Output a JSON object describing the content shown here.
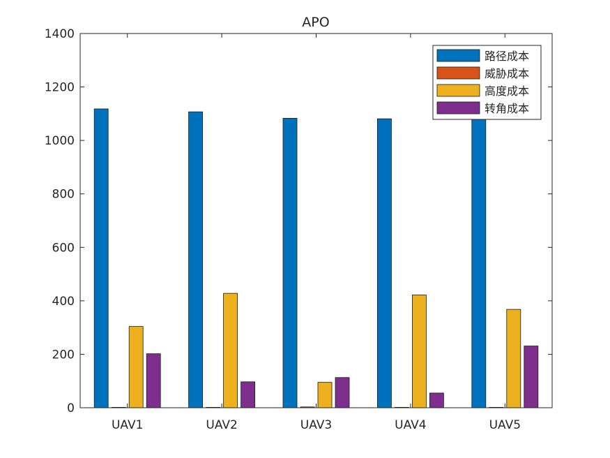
{
  "chart_data": {
    "type": "bar",
    "title": "APO",
    "xlabel": "",
    "ylabel": "",
    "categories": [
      "UAV1",
      "UAV2",
      "UAV3",
      "UAV4",
      "UAV5"
    ],
    "ylim": [
      0,
      1400
    ],
    "yticks": [
      0,
      200,
      400,
      600,
      800,
      1000,
      1200,
      1400
    ],
    "grid": false,
    "legend_position": "top-right",
    "series": [
      {
        "name": "路径成本",
        "color": "#0072BD",
        "values": [
          1118,
          1107,
          1083,
          1081,
          1095
        ]
      },
      {
        "name": "威胁成本",
        "color": "#D95319",
        "values": [
          0,
          0,
          3,
          0,
          0
        ]
      },
      {
        "name": "高度成本",
        "color": "#EDB120",
        "values": [
          304,
          428,
          95,
          422,
          368
        ]
      },
      {
        "name": "转角成本",
        "color": "#7E2F8E",
        "values": [
          202,
          97,
          113,
          55,
          231
        ]
      }
    ]
  }
}
